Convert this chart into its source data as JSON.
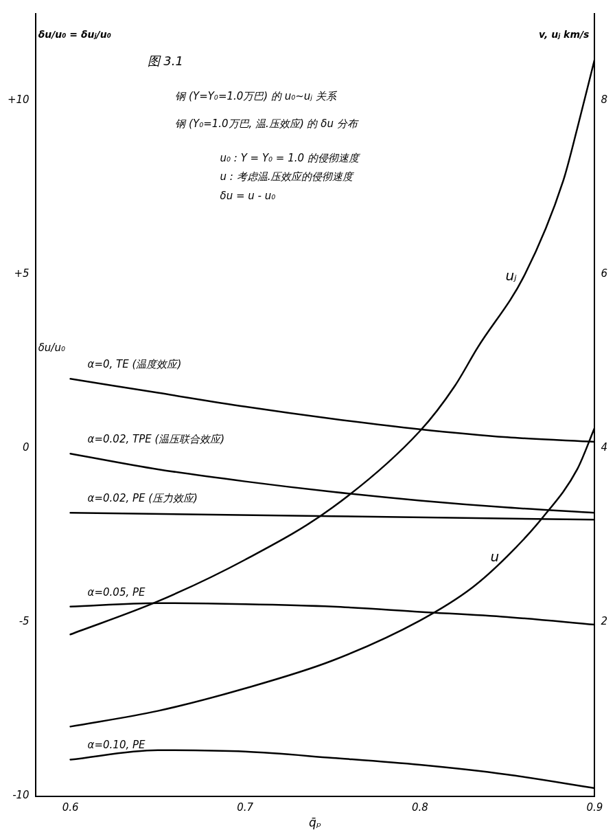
{
  "chart_data": {
    "type": "line",
    "title": "图 3.1",
    "subtitle": "钢 (Y=Y₀=1.0万巴) 的 u₀~uⱼ 关系",
    "annotations": [
      "钢 (Y₀=1.0万巴, 温.压效应) 的 δu 分布",
      "u₀ : Y = Y₀ = 1.0 的侵彻速度",
      "u : 考虑温.压效应的侵彻速度",
      "δu = u - u₀",
      "δu/u₀"
    ],
    "xlabel": "q̄ₚ",
    "ylabel": "δu/u₀ = δuⱼ/u₀",
    "y2label": "v, uⱼ km/s",
    "xlim": [
      0.58,
      0.9
    ],
    "xticks": [
      0.6,
      0.7,
      0.8,
      0.9
    ],
    "ylim": [
      -10,
      12.5
    ],
    "yticks": [
      -10,
      -5,
      0,
      {
        "value": 5,
        "label": "+5"
      },
      {
        "value": 10,
        "label": "+10"
      }
    ],
    "y2lim": [
      0,
      9
    ],
    "y2ticks": [
      2,
      4,
      6,
      8
    ],
    "grid": false,
    "legend": false,
    "marker": "none",
    "line_style": "solid",
    "series": [
      {
        "name": "α=0, TE (温度效应)",
        "color": "#000000",
        "x": [
          0.6,
          0.65,
          0.7,
          0.75,
          0.8,
          0.85,
          0.9
        ],
        "values": [
          2.0,
          1.6,
          1.2,
          0.85,
          0.55,
          0.32,
          0.19
        ]
      },
      {
        "name": "α=0.02, TPE (温压联合效应)",
        "color": "#000000",
        "x": [
          0.6,
          0.65,
          0.7,
          0.75,
          0.8,
          0.85,
          0.9
        ],
        "values": [
          -0.15,
          -0.6,
          -0.95,
          -1.25,
          -1.5,
          -1.7,
          -1.85
        ]
      },
      {
        "name": "α=0.02, PE (压力效应)",
        "color": "#000000",
        "x": [
          0.6,
          0.75,
          0.9
        ],
        "values": [
          -1.85,
          -1.95,
          -2.05
        ]
      },
      {
        "name": "α=0.05, PE",
        "color": "#000000",
        "x": [
          0.6,
          0.65,
          0.7,
          0.75,
          0.8,
          0.85,
          0.9
        ],
        "values": [
          -4.55,
          -4.45,
          -4.48,
          -4.55,
          -4.7,
          -4.85,
          -5.07
        ]
      },
      {
        "name": "α=0.10, PE",
        "color": "#000000",
        "x": [
          0.6,
          0.65,
          0.7,
          0.75,
          0.8,
          0.85,
          0.9
        ],
        "values": [
          -8.95,
          -8.68,
          -8.72,
          -8.9,
          -9.1,
          -9.38,
          -9.77
        ]
      },
      {
        "name": "u",
        "color": "#000000",
        "axis": "y2",
        "x": [
          0.6,
          0.65,
          0.7,
          0.75,
          0.8,
          0.83,
          0.85,
          0.87,
          0.89,
          0.9
        ],
        "values": [
          0.8,
          0.98,
          1.24,
          1.56,
          2.02,
          2.4,
          2.76,
          3.2,
          3.76,
          4.24
        ]
      },
      {
        "name": "uⱼ",
        "color": "#000000",
        "axis": "y2",
        "x": [
          0.6,
          0.65,
          0.7,
          0.75,
          0.8,
          0.82,
          0.833,
          0.86,
          0.882,
          0.89,
          0.9
        ],
        "values": [
          1.86,
          2.24,
          2.72,
          3.32,
          4.2,
          4.72,
          5.16,
          6.0,
          7.08,
          7.68,
          8.48
        ]
      }
    ]
  }
}
